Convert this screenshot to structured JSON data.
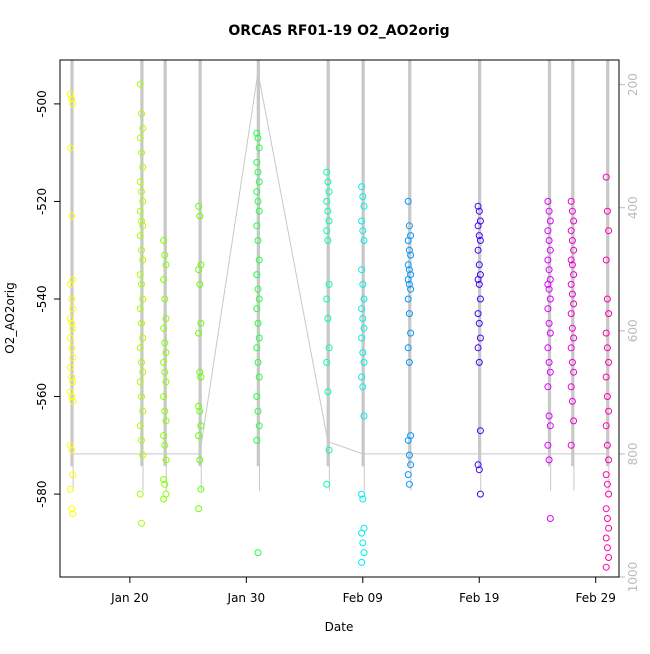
{
  "chart_data": {
    "type": "scatter",
    "title": "ORCAS RF01-19 O2_AO2orig",
    "xlabel": "Date",
    "ylabel": "O2_AO2orig",
    "x_start": "2016-01-14",
    "x_end": "2016-03-02",
    "xlim": [
      "2016-01-14",
      "2016-03-02"
    ],
    "ylim": [
      -597,
      -491
    ],
    "y2lim": [
      1000,
      160
    ],
    "x_ticks": [
      {
        "date": "2016-01-20",
        "label": "Jan 20"
      },
      {
        "date": "2016-01-30",
        "label": "Jan 30"
      },
      {
        "date": "2016-02-09",
        "label": "Feb 09"
      },
      {
        "date": "2016-02-19",
        "label": "Feb 19"
      },
      {
        "date": "2016-02-29",
        "label": "Feb 29"
      }
    ],
    "y_ticks": [
      -500,
      -520,
      -540,
      -560,
      -580
    ],
    "y2_ticks": [
      200,
      400,
      600,
      800,
      1000
    ],
    "grid": false,
    "flights": [
      {
        "date": "2016-01-15",
        "color": "#ffff00",
        "values": [
          -498,
          -499,
          -500,
          -509,
          -523,
          -536,
          -537,
          -540,
          -542,
          -544,
          -545,
          -546,
          -548,
          -550,
          -552,
          -554,
          -556,
          -557,
          -559,
          -560,
          -561,
          -570,
          -571,
          -576,
          -579,
          -583,
          -584
        ]
      },
      {
        "date": "2016-01-21",
        "color": "#aaff00",
        "values": [
          -496,
          -502,
          -505,
          -507,
          -510,
          -513,
          -516,
          -518,
          -520,
          -522,
          -524,
          -525,
          -527,
          -530,
          -532,
          -535,
          -537,
          -540,
          -542,
          -545,
          -548,
          -550,
          -553,
          -555,
          -557,
          -560,
          -563,
          -566,
          -569,
          -572,
          -580,
          -586
        ]
      },
      {
        "date": "2016-01-23",
        "color": "#88ff00",
        "values": [
          -528,
          -531,
          -533,
          -536,
          -540,
          -544,
          -546,
          -549,
          -551,
          -553,
          -555,
          -557,
          -560,
          -563,
          -565,
          -568,
          -570,
          -573,
          -577,
          -578,
          -580,
          -581
        ]
      },
      {
        "date": "2016-01-26",
        "color": "#66ff00",
        "values": [
          -521,
          -523,
          -533,
          -534,
          -537,
          -545,
          -547,
          -555,
          -556,
          -562,
          -563,
          -566,
          -568,
          -573,
          -579,
          -583
        ]
      },
      {
        "date": "2016-01-31",
        "color": "#22ff44",
        "values": [
          -506,
          -507,
          -509,
          -512,
          -514,
          -516,
          -518,
          -520,
          -522,
          -525,
          -528,
          -532,
          -535,
          -538,
          -540,
          -542,
          -545,
          -548,
          -550,
          -553,
          -556,
          -560,
          -563,
          -566,
          -569,
          -592
        ]
      },
      {
        "date": "2016-02-06",
        "color": "#00ffaa",
        "values": [
          -514,
          -516,
          -518,
          -520,
          -522,
          -524,
          -526,
          -528,
          -537,
          -540,
          -544,
          -550,
          -553,
          -559,
          -571,
          -578
        ]
      },
      {
        "date": "2016-02-09",
        "color": "#00eeee",
        "values": [
          -517,
          -519,
          -521,
          -524,
          -526,
          -528,
          -534,
          -537,
          -540,
          -542,
          -544,
          -546,
          -548,
          -551,
          -553,
          -556,
          -558,
          -564,
          -580,
          -581,
          -587,
          -588,
          -590,
          -592,
          -594
        ]
      },
      {
        "date": "2016-02-13",
        "color": "#0099ff",
        "values": [
          -520,
          -525,
          -527,
          -528,
          -530,
          -531,
          -533,
          -534,
          -535,
          -536,
          -537,
          -538,
          -540,
          -543,
          -547,
          -550,
          -553,
          -568,
          -569,
          -572,
          -574,
          -576,
          -578
        ]
      },
      {
        "date": "2016-02-19",
        "color": "#4400ff",
        "values": [
          -521,
          -522,
          -524,
          -525,
          -527,
          -528,
          -530,
          -533,
          -535,
          -536,
          -537,
          -540,
          -543,
          -545,
          -548,
          -550,
          -553,
          -567,
          -574,
          -575,
          -580
        ]
      },
      {
        "date": "2016-02-25",
        "color": "#dd00ff",
        "values": [
          -520,
          -522,
          -524,
          -526,
          -528,
          -530,
          -532,
          -534,
          -536,
          -537,
          -538,
          -540,
          -542,
          -545,
          -547,
          -550,
          -553,
          -555,
          -558,
          -564,
          -566,
          -570,
          -573,
          -585
        ]
      },
      {
        "date": "2016-02-27",
        "color": "#ee00cc",
        "values": [
          -520,
          -522,
          -524,
          -526,
          -528,
          -530,
          -532,
          -533,
          -535,
          -537,
          -539,
          -541,
          -543,
          -546,
          -548,
          -550,
          -553,
          -555,
          -558,
          -561,
          -565,
          -570
        ]
      },
      {
        "date": "2016-03-01",
        "color": "#ff00aa",
        "values": [
          -515,
          -522,
          -526,
          -532,
          -540,
          -543,
          -547,
          -550,
          -553,
          -556,
          -560,
          -563,
          -566,
          -570,
          -573,
          -576,
          -578,
          -580,
          -583,
          -585,
          -587,
          -589,
          -591,
          -593,
          -595
        ]
      }
    ]
  }
}
